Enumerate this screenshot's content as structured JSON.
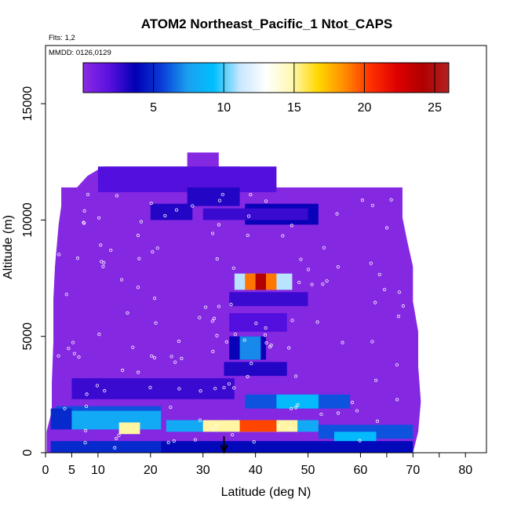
{
  "chart_data": {
    "type": "heatmap",
    "title": "ATOM2 Northeast_Pacific_1 Ntot_CAPS",
    "flights_note": "Flts: 1,2",
    "date_note": "MMDD: 0126,0129",
    "xlabel": "Latitude (deg N)",
    "ylabel": "Altitude (m)",
    "xlim": [
      0,
      84
    ],
    "ylim": [
      0,
      17500
    ],
    "x_ticks": [
      0,
      5,
      10,
      20,
      30,
      40,
      50,
      60,
      70,
      80
    ],
    "x_minor_ticks": [
      65,
      75
    ],
    "y_ticks": [
      0,
      5000,
      10000,
      15000
    ],
    "colorbar": {
      "range": [
        0,
        26
      ],
      "ticks": [
        5,
        10,
        15,
        20,
        25
      ],
      "colors": [
        "#8a2be2",
        "#5a10e0",
        "#0000b4",
        "#0a3cd8",
        "#1aa0f0",
        "#00bfff",
        "#c8e6ff",
        "#ffffff",
        "#fff8b0",
        "#ffd700",
        "#ff8c00",
        "#ff3000",
        "#e00000",
        "#b00000",
        "#b22222"
      ]
    },
    "arrow_latitude": 34,
    "cells": [
      {
        "lat": [
          10,
          44
        ],
        "alt": [
          11200,
          12300
        ],
        "value": 2
      },
      {
        "lat": [
          27,
          37
        ],
        "alt": [
          10600,
          11400
        ],
        "value": 3
      },
      {
        "lat": [
          38,
          52
        ],
        "alt": [
          9800,
          10700
        ],
        "value": 3.5
      },
      {
        "lat": [
          30,
          50
        ],
        "alt": [
          10000,
          10500
        ],
        "value": 2.5
      },
      {
        "lat": [
          20,
          28
        ],
        "alt": [
          10000,
          10700
        ],
        "value": 3
      },
      {
        "lat": [
          36,
          47
        ],
        "alt": [
          7000,
          7700
        ],
        "value": 11
      },
      {
        "lat": [
          38,
          44
        ],
        "alt": [
          7000,
          7700
        ],
        "value": 19
      },
      {
        "lat": [
          40,
          42
        ],
        "alt": [
          7000,
          7700
        ],
        "value": 24
      },
      {
        "lat": [
          35,
          50
        ],
        "alt": [
          6300,
          6900
        ],
        "value": 2.5
      },
      {
        "lat": [
          35,
          46
        ],
        "alt": [
          5200,
          6000
        ],
        "value": 2
      },
      {
        "lat": [
          35,
          42
        ],
        "alt": [
          4000,
          5000
        ],
        "value": 3.5
      },
      {
        "lat": [
          37,
          41
        ],
        "alt": [
          4000,
          5000
        ],
        "value": 7
      },
      {
        "lat": [
          34,
          46
        ],
        "alt": [
          3300,
          3900
        ],
        "value": 3
      },
      {
        "lat": [
          5,
          36
        ],
        "alt": [
          2300,
          3200
        ],
        "value": 2.5
      },
      {
        "lat": [
          38,
          58
        ],
        "alt": [
          1900,
          2500
        ],
        "value": 6
      },
      {
        "lat": [
          44,
          52
        ],
        "alt": [
          1900,
          2500
        ],
        "value": 9
      },
      {
        "lat": [
          2,
          22
        ],
        "alt": [
          1500,
          2000
        ],
        "value": 6
      },
      {
        "lat": [
          1,
          5
        ],
        "alt": [
          1000,
          1900
        ],
        "value": 5
      },
      {
        "lat": [
          5,
          22
        ],
        "alt": [
          1000,
          1800
        ],
        "value": 8
      },
      {
        "lat": [
          14,
          18
        ],
        "alt": [
          800,
          1300
        ],
        "value": 15
      },
      {
        "lat": [
          23,
          52
        ],
        "alt": [
          900,
          1400
        ],
        "value": 8
      },
      {
        "lat": [
          30,
          48
        ],
        "alt": [
          900,
          1400
        ],
        "value": 15
      },
      {
        "lat": [
          37,
          44
        ],
        "alt": [
          900,
          1400
        ],
        "value": 20
      },
      {
        "lat": [
          52,
          70
        ],
        "alt": [
          600,
          1200
        ],
        "value": 6
      },
      {
        "lat": [
          55,
          63
        ],
        "alt": [
          200,
          900
        ],
        "value": 9
      },
      {
        "lat": [
          1,
          22
        ],
        "alt": [
          0,
          500
        ],
        "value": 5
      },
      {
        "lat": [
          22,
          40
        ],
        "alt": [
          0,
          500
        ],
        "value": 4
      },
      {
        "lat": [
          40,
          70
        ],
        "alt": [
          0,
          500
        ],
        "value": 4
      }
    ]
  }
}
